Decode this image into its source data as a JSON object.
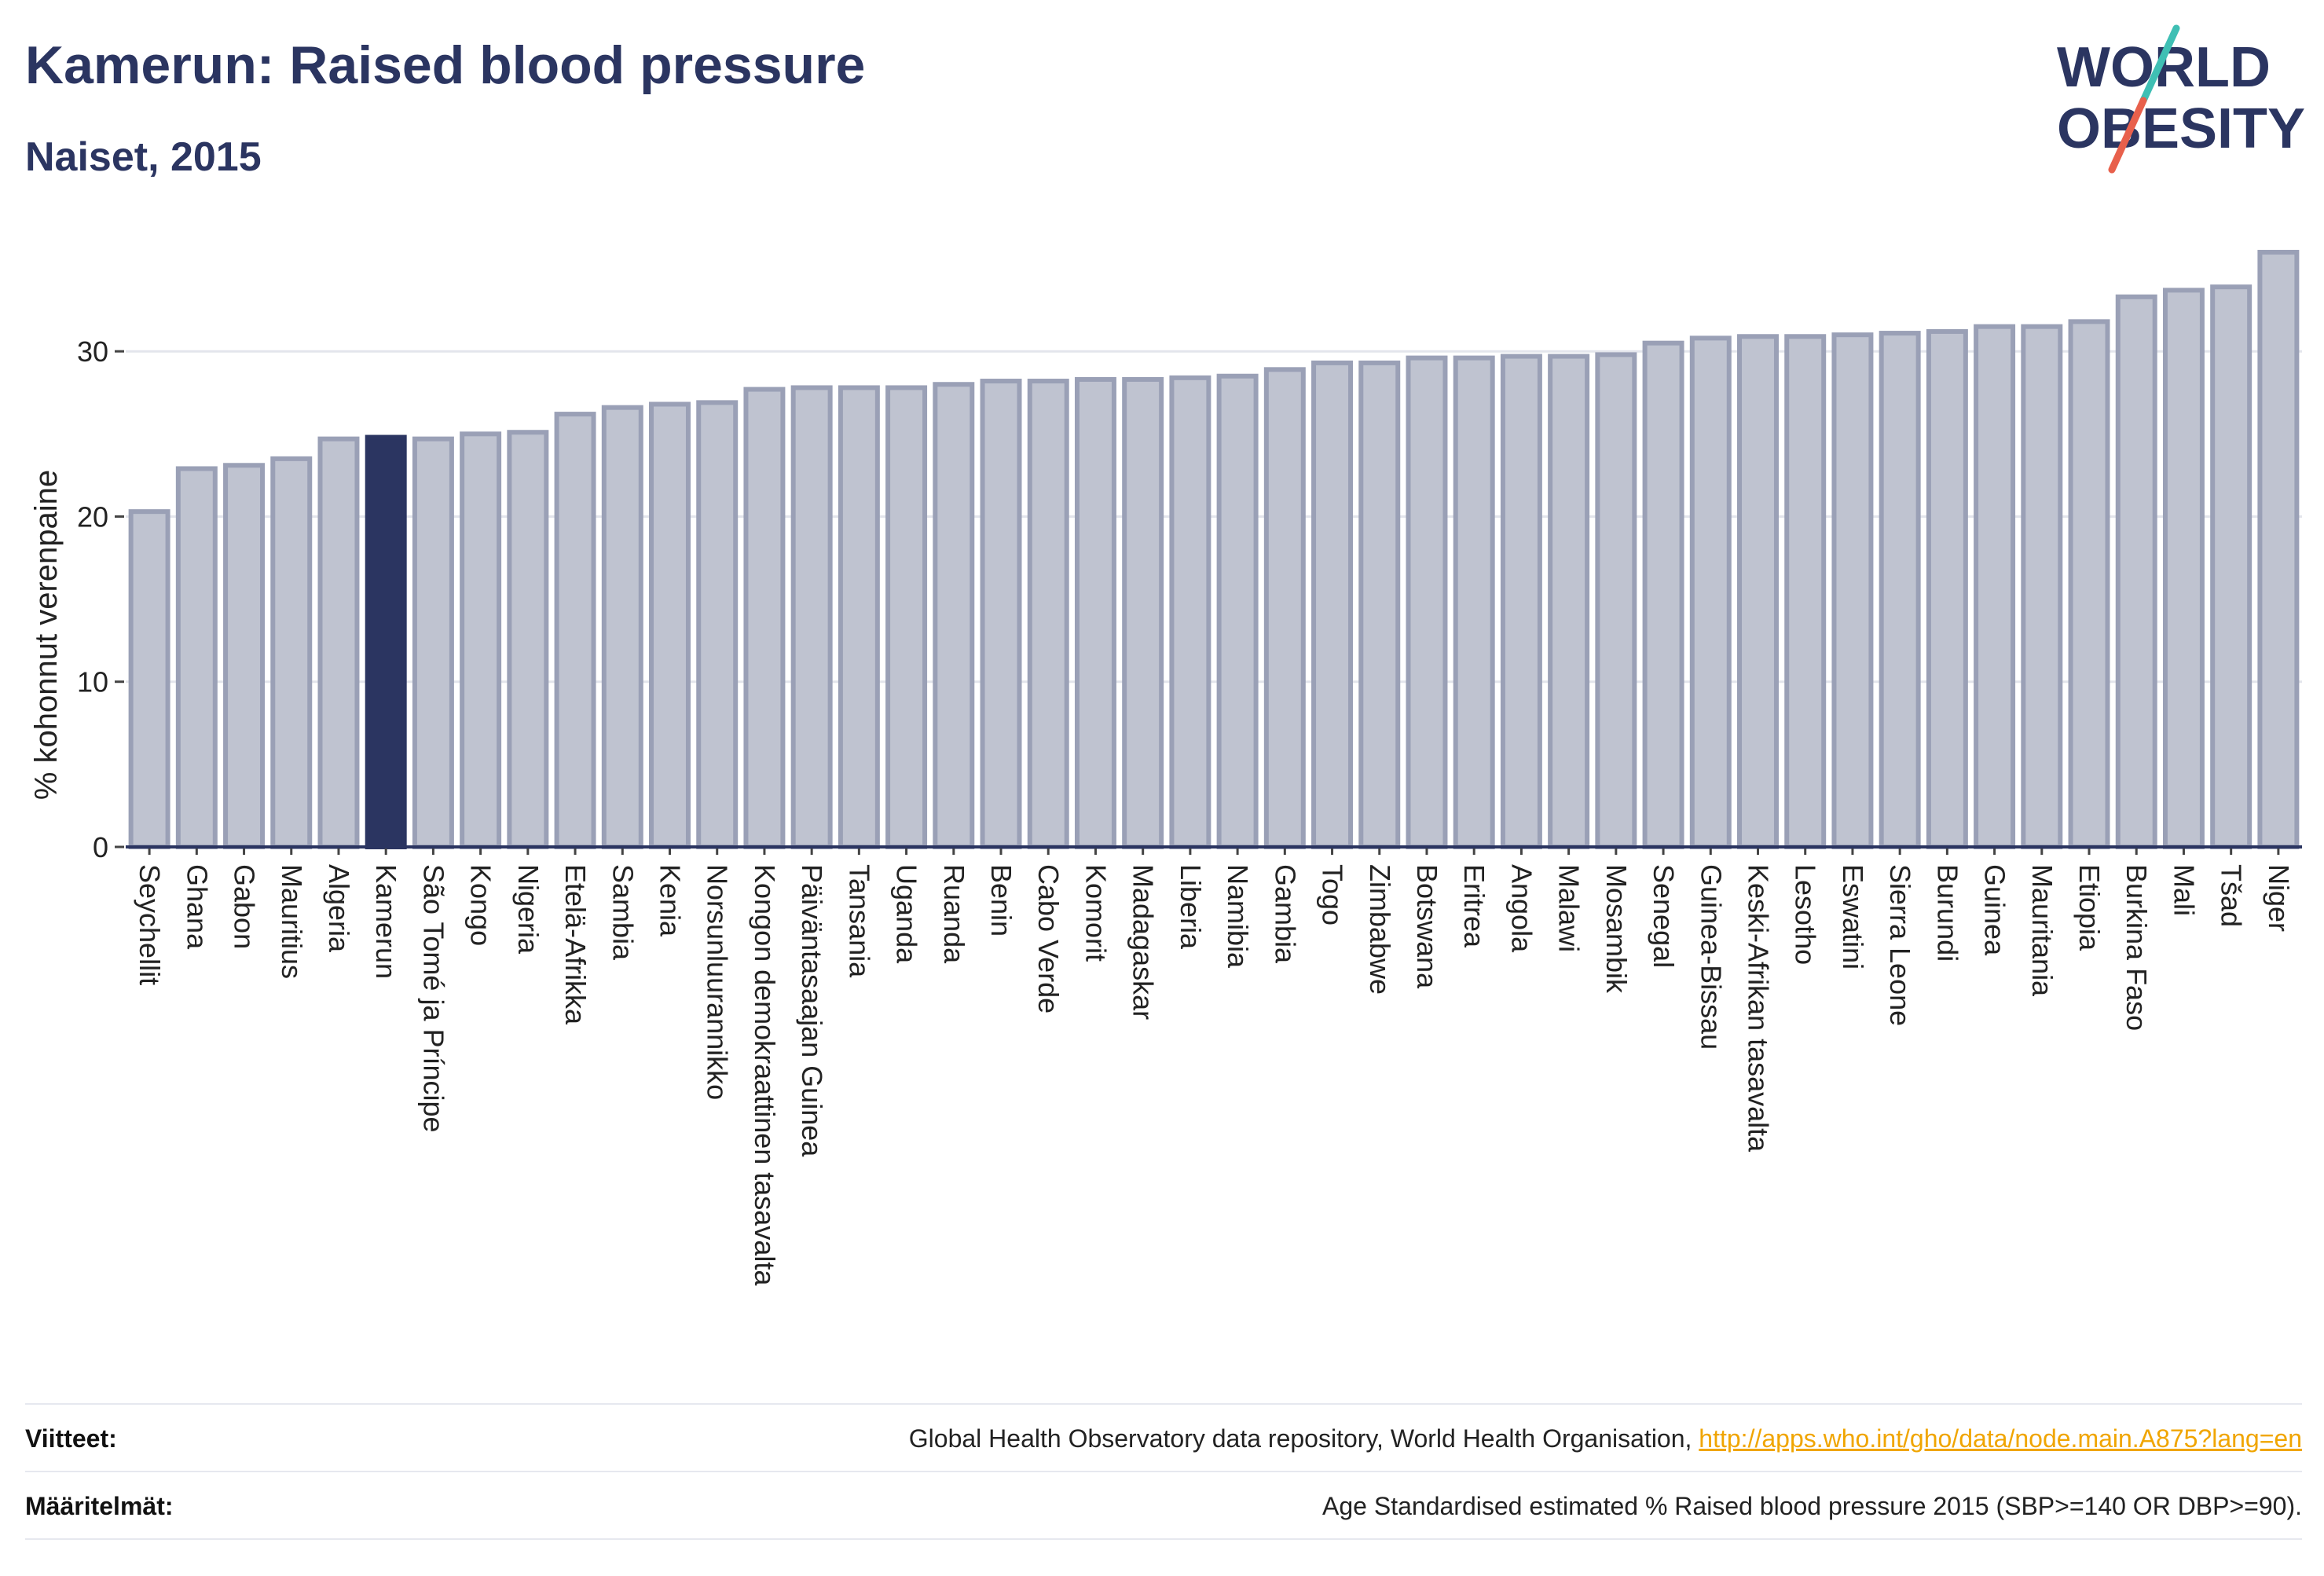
{
  "header": {
    "title": "Kamerun: Raised blood pressure",
    "subtitle": "Naiset, 2015"
  },
  "logo": {
    "line1": "WORLD",
    "line2": "OBESITY",
    "icon": "world-obesity-logo"
  },
  "chart_data": {
    "type": "bar",
    "ylabel": "% kohonnut verenpaine",
    "xlabel": "",
    "ylim": [
      0,
      37
    ],
    "yticks": [
      0,
      10,
      20,
      30
    ],
    "grid": true,
    "highlight": "Kamerun",
    "colors": {
      "bar": "#bfc3d0",
      "bar_edge": "#9aa0b6",
      "highlight": "#2b3561",
      "grid": "#e3e5ec"
    },
    "categories": [
      "Seychellit",
      "Ghana",
      "Gabon",
      "Mauritius",
      "Algeria",
      "Kamerun",
      "São Tomé ja Príncipe",
      "Kongo",
      "Nigeria",
      "Etelä-Afrikka",
      "Sambia",
      "Kenia",
      "Norsunluurannikko",
      "Kongon demokraattinen tasavalta",
      "Päiväntasaajan Guinea",
      "Tansania",
      "Uganda",
      "Ruanda",
      "Benin",
      "Cabo Verde",
      "Komorit",
      "Madagaskar",
      "Liberia",
      "Namibia",
      "Gambia",
      "Togo",
      "Zimbabwe",
      "Botswana",
      "Eritrea",
      "Angola",
      "Malawi",
      "Mosambik",
      "Senegal",
      "Guinea-Bissau",
      "Keski-Afrikan tasavalta",
      "Lesotho",
      "Eswatini",
      "Sierra Leone",
      "Burundi",
      "Guinea",
      "Mauritania",
      "Etiopia",
      "Burkina Faso",
      "Mali",
      "Tšad",
      "Niger"
    ],
    "values": [
      20.3,
      22.9,
      23.1,
      23.5,
      24.7,
      24.8,
      24.7,
      25.0,
      25.1,
      26.2,
      26.6,
      26.8,
      26.9,
      27.7,
      27.8,
      27.8,
      27.8,
      28.0,
      28.2,
      28.2,
      28.3,
      28.3,
      28.4,
      28.5,
      28.9,
      29.3,
      29.3,
      29.6,
      29.6,
      29.7,
      29.7,
      29.8,
      30.5,
      30.8,
      30.9,
      30.9,
      31.0,
      31.1,
      31.2,
      31.5,
      31.5,
      31.8,
      33.3,
      33.7,
      33.9,
      36.0
    ]
  },
  "footer": {
    "sources_label": "Viitteet:",
    "sources_text": "Global Health Observatory data repository, World Health Organisation, ",
    "sources_link": "http://apps.who.int/gho/data/node.main.A875?lang=en",
    "definitions_label": "Määritelmät:",
    "definitions_text": "Age Standardised estimated % Raised blood pressure 2015 (SBP>=140 OR DBP>=90)."
  }
}
